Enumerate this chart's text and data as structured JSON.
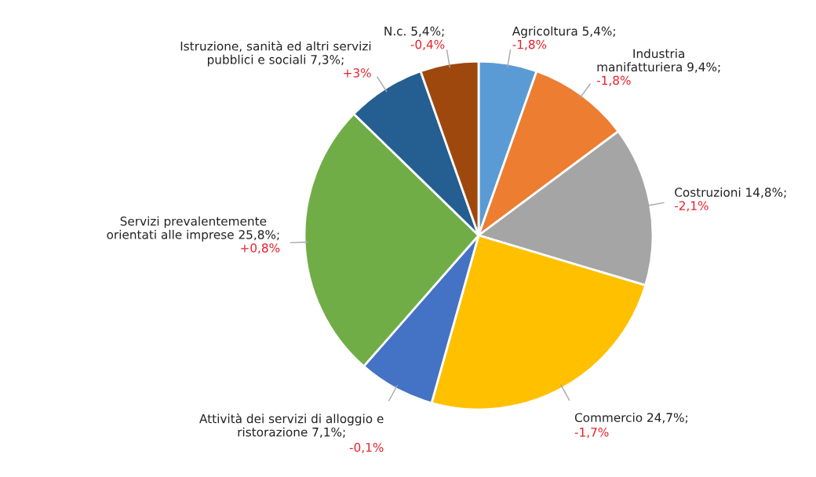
{
  "chart_data": {
    "type": "pie",
    "categories": [
      "Agricoltura",
      "Industria\nmanifatturiera",
      "Costruzioni",
      "Commercio",
      "Attività dei servizi di alloggio e\nristorazione",
      "Servizi prevalentemente\norientati alle imprese",
      "Istruzione, sanità ed altri servizi\npubblici e sociali",
      "N.c."
    ],
    "values": [
      5.4,
      9.4,
      14.8,
      24.7,
      7.1,
      25.8,
      7.3,
      5.4
    ],
    "value_labels": [
      "5,4%;",
      "9,4%;",
      "14,8%;",
      "24,7%;",
      "7,1%;",
      "25,8%;",
      "7,3%;",
      "5,4%;"
    ],
    "colors": [
      "#5b9bd5",
      "#ed7d31",
      "#a5a5a5",
      "#ffc000",
      "#4472c4",
      "#70ad47",
      "#255e91",
      "#9e480e"
    ],
    "annotations": [
      "-1,8%",
      "-1,8%",
      "-2,1%",
      "-1,7%",
      "-0,1%",
      "+0,8%",
      "+3%",
      "-0,4%"
    ]
  }
}
